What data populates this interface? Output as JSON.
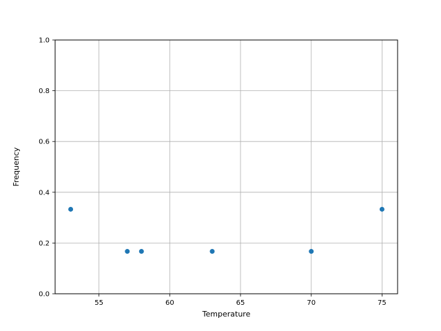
{
  "chart_data": {
    "type": "scatter",
    "title": "",
    "xlabel": "Temperature",
    "ylabel": "Frequency",
    "points": [
      {
        "x": 53,
        "y": 0.333
      },
      {
        "x": 57,
        "y": 0.167
      },
      {
        "x": 58,
        "y": 0.167
      },
      {
        "x": 63,
        "y": 0.167
      },
      {
        "x": 70,
        "y": 0.167
      },
      {
        "x": 75,
        "y": 0.333
      }
    ],
    "xticks": [
      55,
      60,
      65,
      70,
      75
    ],
    "xtick_labels": [
      "55",
      "60",
      "65",
      "70",
      "75"
    ],
    "yticks": [
      0.0,
      0.2,
      0.4,
      0.6,
      0.8,
      1.0
    ],
    "ytick_labels": [
      "0.0",
      "0.2",
      "0.4",
      "0.6",
      "0.8",
      "1.0"
    ],
    "xlim": [
      51.9,
      76.1
    ],
    "ylim": [
      0.0,
      1.0
    ],
    "grid": true,
    "legend": null,
    "marker_color": "#1f77b4",
    "grid_color": "#b0b0b0",
    "spine_color": "#000000",
    "background_color": "#ffffff"
  }
}
